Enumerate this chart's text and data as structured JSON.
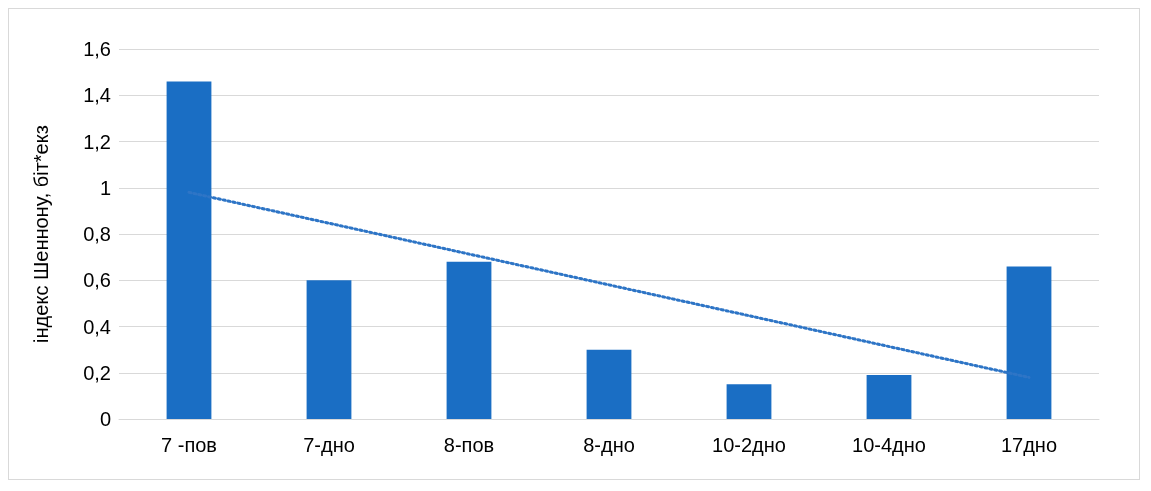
{
  "chart_data": {
    "type": "bar",
    "ylabel": "індекс Шеннону, біт*екз",
    "categories": [
      "7 -пов",
      "7-дно",
      "8-пов",
      "8-дно",
      "10-2дно",
      "10-4дно",
      "17дно"
    ],
    "series": [
      {
        "color": "#1a6ec4",
        "values": [
          1.46,
          0.6,
          0.68,
          0.3,
          0.15,
          0.19,
          0.66
        ]
      },
      {
        "type": "line",
        "color": "#2e75c6",
        "line_style": "dotted",
        "marker": "none",
        "x": [
          "7 -пов",
          "17дно"
        ],
        "values": [
          0.98,
          0.18
        ]
      }
    ],
    "ylim": [
      0,
      1.6
    ],
    "yticks": [
      0,
      {
        "value": 0.2,
        "label": "0,2"
      },
      {
        "value": 0.4,
        "label": "0,4"
      },
      {
        "value": 0.6,
        "label": "0,6"
      },
      {
        "value": 0.8,
        "label": "0,8"
      },
      1,
      {
        "value": 1.2,
        "label": "1,2"
      },
      {
        "value": 1.4,
        "label": "1,4"
      },
      {
        "value": 1.6,
        "label": "1,6"
      }
    ],
    "grid": "y"
  }
}
